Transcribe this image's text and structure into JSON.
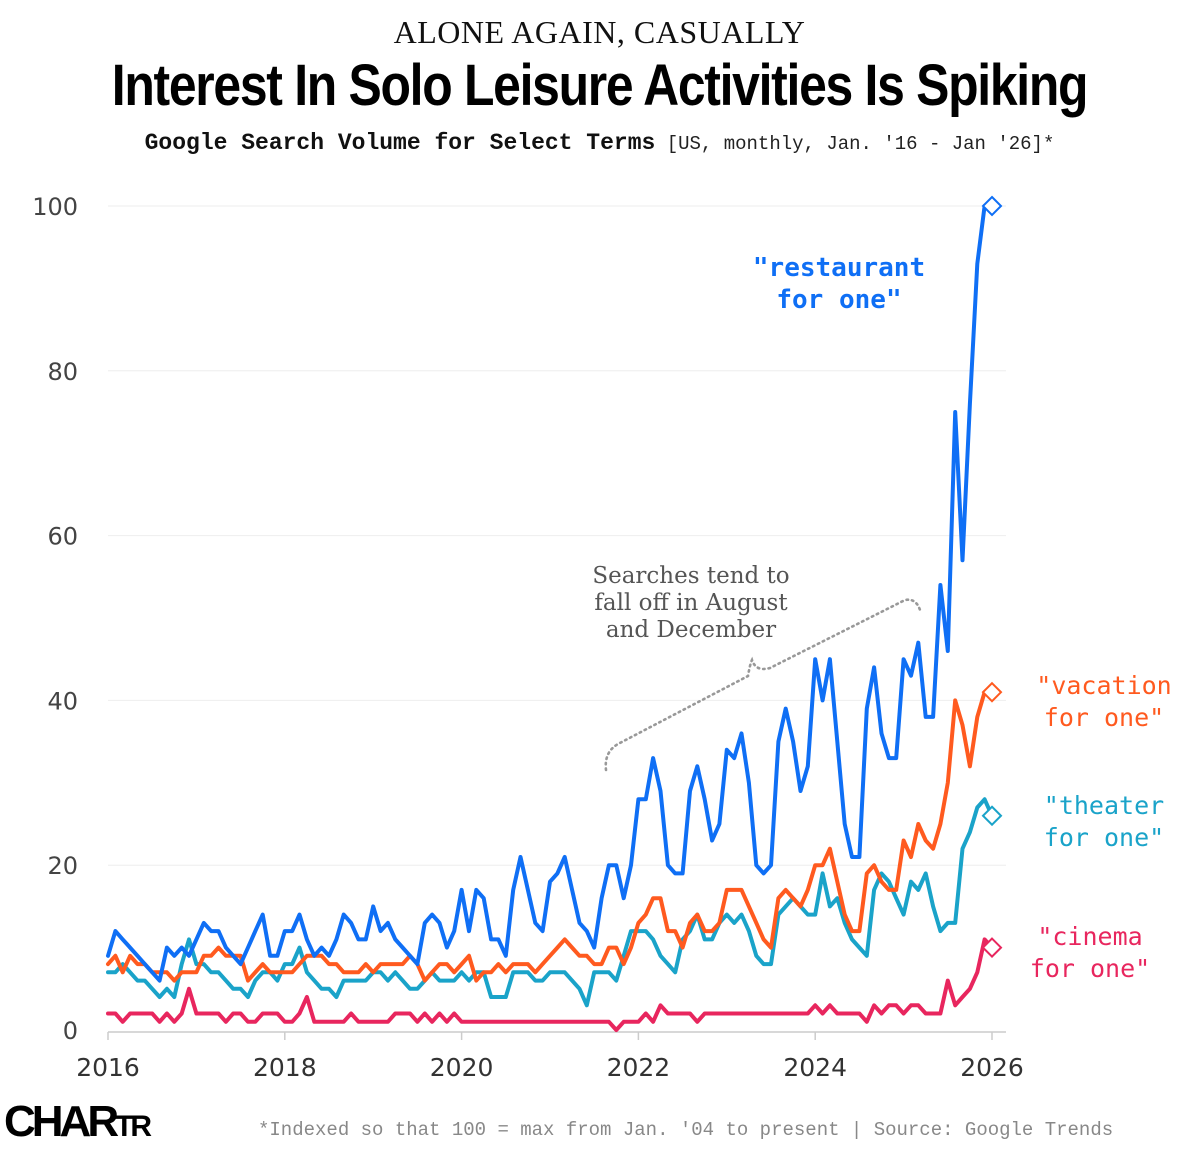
{
  "header": {
    "kicker": "ALONE AGAIN, CASUALLY",
    "title": "Interest In Solo Leisure Activities Is Spiking",
    "subtitle_main": "Google Search Volume for Select Terms",
    "subtitle_detail": " [US, monthly, Jan. '16 - Jan '26]*"
  },
  "footer": {
    "logo_main": "CHAR",
    "logo_small": "TR",
    "note": "*Indexed so that 100 = max from Jan. '04 to present | Source: Google Trends"
  },
  "chart_data": {
    "type": "line",
    "title": "Interest In Solo Leisure Activities Is Spiking",
    "subtitle": "Google Search Volume for Select Terms [US, monthly, Jan. '16 - Jan '26]*",
    "xlabel": "",
    "ylabel": "",
    "x_start": "2016-01",
    "x_end": "2026-01",
    "frequency": "monthly",
    "xlim": [
      2016,
      2026
    ],
    "ylim": [
      0,
      100
    ],
    "xticks": [
      2016,
      2018,
      2020,
      2022,
      2024,
      2026
    ],
    "yticks": [
      0,
      20,
      40,
      60,
      80,
      100
    ],
    "grid": "horizontal",
    "legend": "inline labels at right",
    "annotation": {
      "text": [
        "Searches tend to",
        "fall off in August",
        "and December"
      ],
      "color": "#555555"
    },
    "series": [
      {
        "name": "\"restaurant for one\"",
        "label_lines": [
          "\"restaurant",
          "for one\""
        ],
        "color": "#0F6FF5",
        "label_weight": "bold",
        "values": [
          9,
          12,
          11,
          10,
          9,
          8,
          7,
          6,
          10,
          9,
          10,
          9,
          11,
          13,
          12,
          12,
          10,
          9,
          8,
          10,
          12,
          14,
          9,
          9,
          12,
          12,
          14,
          11,
          9,
          10,
          9,
          11,
          14,
          13,
          11,
          11,
          15,
          12,
          13,
          11,
          10,
          9,
          8,
          13,
          14,
          13,
          10,
          12,
          17,
          12,
          17,
          16,
          11,
          11,
          9,
          17,
          21,
          17,
          13,
          12,
          18,
          19,
          21,
          17,
          13,
          12,
          10,
          16,
          20,
          20,
          16,
          20,
          28,
          28,
          33,
          29,
          20,
          19,
          19,
          29,
          32,
          28,
          23,
          25,
          34,
          33,
          36,
          30,
          20,
          19,
          20,
          35,
          39,
          35,
          29,
          32,
          45,
          40,
          45,
          35,
          25,
          21,
          21,
          39,
          44,
          36,
          33,
          33,
          45,
          43,
          47,
          38,
          38,
          54,
          46,
          75,
          57,
          76,
          93,
          100,
          100
        ],
        "end_marker": 100
      },
      {
        "name": "\"vacation for one\"",
        "label_lines": [
          "\"vacation",
          "for one\""
        ],
        "color": "#FF5A1F",
        "label_weight": "normal",
        "values": [
          8,
          9,
          7,
          9,
          8,
          8,
          7,
          7,
          7,
          6,
          7,
          7,
          7,
          9,
          9,
          10,
          9,
          9,
          9,
          6,
          7,
          8,
          7,
          7,
          7,
          7,
          8,
          9,
          9,
          9,
          8,
          8,
          7,
          7,
          7,
          8,
          7,
          8,
          8,
          8,
          8,
          9,
          8,
          6,
          7,
          8,
          8,
          7,
          8,
          9,
          6,
          7,
          7,
          8,
          7,
          8,
          8,
          8,
          7,
          8,
          9,
          10,
          11,
          10,
          9,
          9,
          8,
          8,
          10,
          10,
          8,
          10,
          13,
          14,
          16,
          16,
          12,
          12,
          10,
          13,
          14,
          12,
          12,
          13,
          17,
          17,
          17,
          15,
          13,
          11,
          10,
          16,
          17,
          16,
          15,
          17,
          20,
          20,
          22,
          18,
          14,
          12,
          12,
          19,
          20,
          18,
          17,
          17,
          23,
          21,
          25,
          23,
          22,
          25,
          30,
          40,
          37,
          32,
          38,
          41,
          41
        ],
        "end_marker": 41
      },
      {
        "name": "\"theater for one\"",
        "label_lines": [
          "\"theater",
          "for one\""
        ],
        "color": "#1AA3C9",
        "label_weight": "normal",
        "values": [
          7,
          7,
          8,
          7,
          6,
          6,
          5,
          4,
          5,
          4,
          8,
          11,
          8,
          8,
          7,
          7,
          6,
          5,
          5,
          4,
          6,
          7,
          7,
          6,
          8,
          8,
          10,
          7,
          6,
          5,
          5,
          4,
          6,
          6,
          6,
          6,
          7,
          7,
          6,
          7,
          6,
          5,
          5,
          6,
          7,
          6,
          6,
          6,
          7,
          6,
          7,
          7,
          4,
          4,
          4,
          7,
          7,
          7,
          6,
          6,
          7,
          7,
          7,
          6,
          5,
          3,
          7,
          7,
          7,
          6,
          9,
          12,
          12,
          12,
          11,
          9,
          8,
          7,
          11,
          12,
          14,
          11,
          11,
          13,
          14,
          13,
          14,
          12,
          9,
          8,
          8,
          14,
          15,
          16,
          15,
          14,
          14,
          19,
          15,
          16,
          13,
          11,
          10,
          9,
          17,
          19,
          18,
          16,
          14,
          18,
          17,
          19,
          15,
          12,
          13,
          13,
          22,
          24,
          27,
          28,
          26
        ],
        "end_marker": 26
      },
      {
        "name": "\"cinema for one\"",
        "label_lines": [
          "\"cinema",
          "for one\""
        ],
        "color": "#E8265E",
        "label_weight": "normal",
        "values": [
          2,
          2,
          1,
          2,
          2,
          2,
          2,
          1,
          2,
          1,
          2,
          5,
          2,
          2,
          2,
          2,
          1,
          2,
          2,
          1,
          1,
          2,
          2,
          2,
          1,
          1,
          2,
          4,
          1,
          1,
          1,
          1,
          1,
          2,
          1,
          1,
          1,
          1,
          1,
          2,
          2,
          2,
          1,
          2,
          1,
          2,
          1,
          2,
          1,
          1,
          1,
          1,
          1,
          1,
          1,
          1,
          1,
          1,
          1,
          1,
          1,
          1,
          1,
          1,
          1,
          1,
          1,
          1,
          1,
          0,
          1,
          1,
          1,
          2,
          1,
          3,
          2,
          2,
          2,
          2,
          1,
          2,
          2,
          2,
          2,
          2,
          2,
          2,
          2,
          2,
          2,
          2,
          2,
          2,
          2,
          2,
          3,
          2,
          3,
          2,
          2,
          2,
          2,
          1,
          3,
          2,
          3,
          3,
          2,
          3,
          3,
          2,
          2,
          2,
          6,
          3,
          4,
          5,
          7,
          11,
          10
        ],
        "end_marker": 10
      }
    ]
  }
}
